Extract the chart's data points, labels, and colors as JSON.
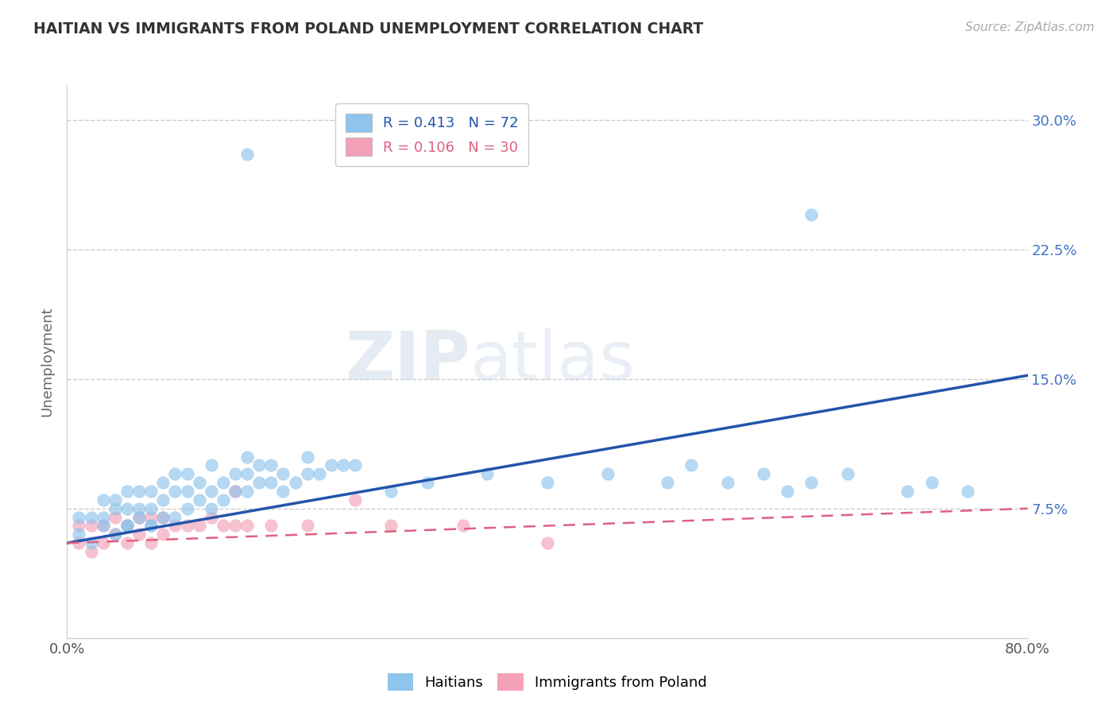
{
  "title": "HAITIAN VS IMMIGRANTS FROM POLAND UNEMPLOYMENT CORRELATION CHART",
  "source": "Source: ZipAtlas.com",
  "ylabel": "Unemployment",
  "xlim": [
    0.0,
    0.8
  ],
  "ylim": [
    0.0,
    0.32
  ],
  "xticks": [
    0.0,
    0.1,
    0.2,
    0.3,
    0.4,
    0.5,
    0.6,
    0.7,
    0.8
  ],
  "yticks": [
    0.0,
    0.075,
    0.15,
    0.225,
    0.3
  ],
  "yticklabels_right": [
    "",
    "7.5%",
    "15.0%",
    "22.5%",
    "30.0%"
  ],
  "legend_r1": "R = 0.413",
  "legend_n1": "N = 72",
  "legend_r2": "R = 0.106",
  "legend_n2": "N = 30",
  "color_haitian": "#8fc4ec",
  "color_poland": "#f4a0b8",
  "color_line_haitian": "#2255aa",
  "color_line_poland": "#e06080",
  "watermark_zip": "ZIP",
  "watermark_atlas": "atlas",
  "haitian_line_y0": 0.055,
  "haitian_line_y1": 0.152,
  "poland_line_y0": 0.055,
  "poland_line_y1": 0.075,
  "scatter_haitian_x": [
    0.01,
    0.01,
    0.02,
    0.02,
    0.03,
    0.03,
    0.03,
    0.04,
    0.04,
    0.04,
    0.05,
    0.05,
    0.05,
    0.05,
    0.06,
    0.06,
    0.06,
    0.07,
    0.07,
    0.07,
    0.07,
    0.08,
    0.08,
    0.08,
    0.09,
    0.09,
    0.09,
    0.1,
    0.1,
    0.1,
    0.11,
    0.11,
    0.12,
    0.12,
    0.12,
    0.13,
    0.13,
    0.14,
    0.14,
    0.15,
    0.15,
    0.15,
    0.16,
    0.16,
    0.17,
    0.17,
    0.18,
    0.18,
    0.19,
    0.2,
    0.2,
    0.21,
    0.22,
    0.23,
    0.24,
    0.27,
    0.3,
    0.35,
    0.4,
    0.45,
    0.5,
    0.52,
    0.55,
    0.58,
    0.6,
    0.62,
    0.65,
    0.7,
    0.72,
    0.75,
    0.15,
    0.62
  ],
  "scatter_haitian_y": [
    0.06,
    0.07,
    0.055,
    0.07,
    0.07,
    0.065,
    0.08,
    0.06,
    0.075,
    0.08,
    0.065,
    0.075,
    0.085,
    0.065,
    0.07,
    0.075,
    0.085,
    0.065,
    0.075,
    0.085,
    0.065,
    0.07,
    0.08,
    0.09,
    0.07,
    0.085,
    0.095,
    0.075,
    0.085,
    0.095,
    0.08,
    0.09,
    0.075,
    0.085,
    0.1,
    0.08,
    0.09,
    0.085,
    0.095,
    0.085,
    0.095,
    0.105,
    0.09,
    0.1,
    0.09,
    0.1,
    0.085,
    0.095,
    0.09,
    0.095,
    0.105,
    0.095,
    0.1,
    0.1,
    0.1,
    0.085,
    0.09,
    0.095,
    0.09,
    0.095,
    0.09,
    0.1,
    0.09,
    0.095,
    0.085,
    0.09,
    0.095,
    0.085,
    0.09,
    0.085,
    0.28,
    0.245
  ],
  "scatter_poland_x": [
    0.01,
    0.01,
    0.02,
    0.02,
    0.03,
    0.03,
    0.04,
    0.04,
    0.05,
    0.05,
    0.06,
    0.06,
    0.07,
    0.07,
    0.08,
    0.08,
    0.09,
    0.1,
    0.11,
    0.12,
    0.13,
    0.14,
    0.15,
    0.17,
    0.2,
    0.24,
    0.27,
    0.33,
    0.4,
    0.14
  ],
  "scatter_poland_y": [
    0.055,
    0.065,
    0.05,
    0.065,
    0.055,
    0.065,
    0.06,
    0.07,
    0.055,
    0.065,
    0.06,
    0.07,
    0.055,
    0.07,
    0.06,
    0.07,
    0.065,
    0.065,
    0.065,
    0.07,
    0.065,
    0.065,
    0.065,
    0.065,
    0.065,
    0.08,
    0.065,
    0.065,
    0.055,
    0.085
  ]
}
